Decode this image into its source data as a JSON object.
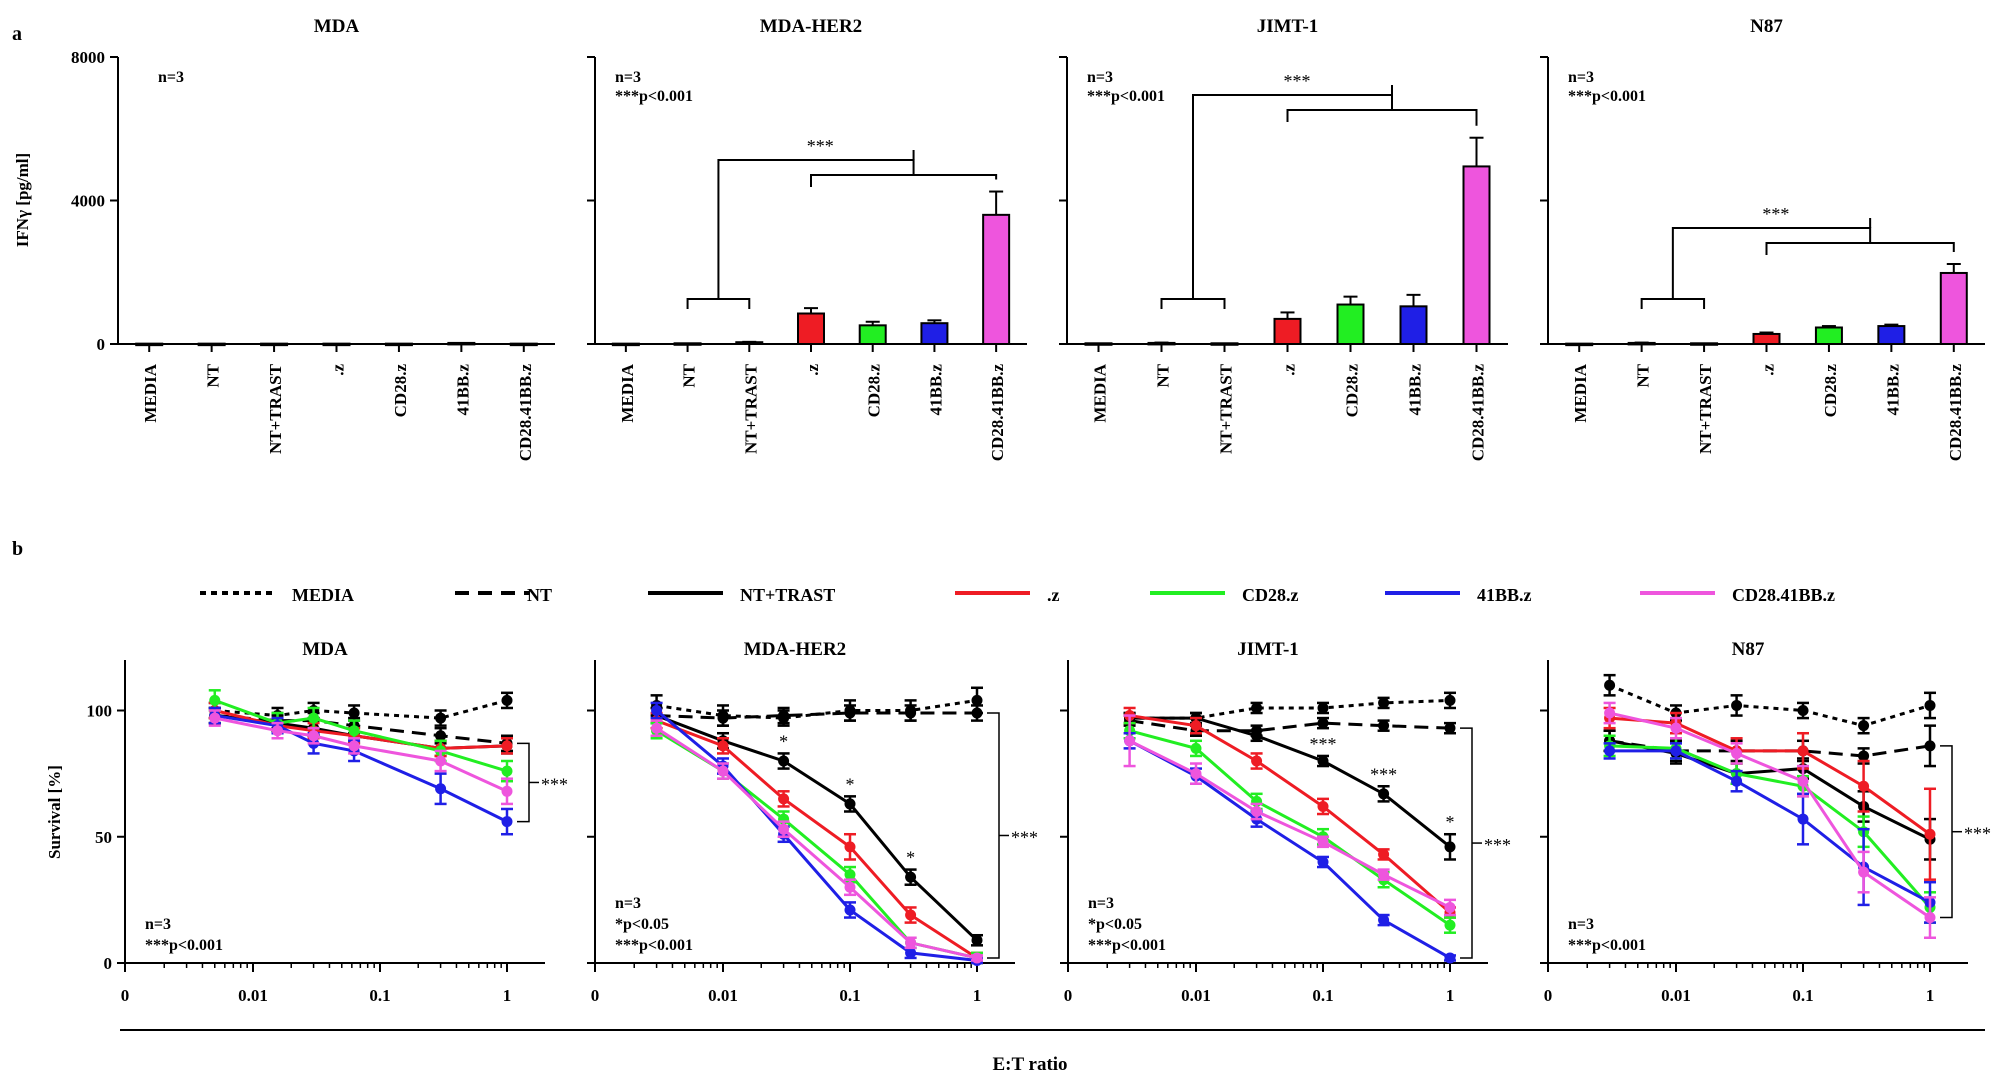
{
  "panel_labels": {
    "a": "a",
    "b": "b"
  },
  "colors": {
    "MEDIA": "#000000",
    "NT": "#000000",
    "NT+TRAST": "#000000",
    ".z": "#ee1c24",
    "CD28.z": "#22ee22",
    "41BB.z": "#1f1fe6",
    "CD28.41BB.z": "#ee55dd"
  },
  "chart_data": [
    {
      "type": "bar",
      "title": "MDA",
      "ylabel": "IFNγ [pg/ml]",
      "yticks": [
        "0",
        "4000",
        "8000"
      ],
      "ylim": [
        0,
        8000
      ],
      "categories": [
        "MEDIA",
        "NT",
        "NT+TRAST",
        ".z",
        "CD28.z",
        "41BB.z",
        "CD28.41BB.z"
      ],
      "values": [
        10,
        10,
        10,
        10,
        10,
        30,
        10
      ],
      "errors": [
        0,
        0,
        0,
        0,
        0,
        0,
        0
      ],
      "annotations": [
        "n=3"
      ],
      "significance": null
    },
    {
      "type": "bar",
      "title": "MDA-HER2",
      "categories": [
        "MEDIA",
        "NT",
        "NT+TRAST",
        ".z",
        "CD28.z",
        "41BB.z",
        "CD28.41BB.z"
      ],
      "values": [
        10,
        20,
        50,
        850,
        520,
        580,
        3600
      ],
      "errors": [
        0,
        0,
        10,
        150,
        100,
        80,
        650
      ],
      "annotations": [
        "n=3",
        "***p<0.001"
      ],
      "significance": "***"
    },
    {
      "type": "bar",
      "title": "JIMT-1",
      "categories": [
        "MEDIA",
        "NT",
        "NT+TRAST",
        ".z",
        "CD28.z",
        "41BB.z",
        "CD28.41BB.z"
      ],
      "values": [
        20,
        30,
        20,
        700,
        1100,
        1050,
        4950
      ],
      "errors": [
        0,
        10,
        0,
        180,
        220,
        320,
        800
      ],
      "annotations": [
        "n=3",
        "***p<0.001"
      ],
      "significance": "***"
    },
    {
      "type": "bar",
      "title": "N87",
      "categories": [
        "MEDIA",
        "NT",
        "NT+TRAST",
        ".z",
        "CD28.z",
        "41BB.z",
        "CD28.41BB.z"
      ],
      "values": [
        10,
        30,
        20,
        280,
        460,
        500,
        1980
      ],
      "errors": [
        0,
        10,
        0,
        40,
        40,
        40,
        250
      ],
      "annotations": [
        "n=3",
        "***p<0.001"
      ],
      "significance": "***"
    },
    {
      "type": "line",
      "title": "MDA",
      "ylabel": "Survival [%]",
      "yticks": [
        "0",
        "50",
        "100"
      ],
      "ylim": [
        0,
        120
      ],
      "xticks": [
        "0",
        "0.01",
        "0.1",
        "1"
      ],
      "x": [
        0.005,
        0.0156,
        0.03,
        0.0625,
        0.3,
        1
      ],
      "series": [
        {
          "name": "MEDIA",
          "values": [
            100,
            98,
            100,
            99,
            97,
            104
          ],
          "errors": [
            3,
            3,
            3,
            3,
            3,
            3
          ]
        },
        {
          "name": "NT",
          "values": [
            98,
            96,
            96,
            94,
            90,
            87
          ],
          "errors": [
            3,
            3,
            3,
            3,
            3,
            3
          ]
        },
        {
          "name": "NT+TRAST",
          "values": [
            98,
            95,
            93,
            90,
            85,
            86
          ],
          "errors": [
            3,
            3,
            3,
            3,
            3,
            3
          ]
        },
        {
          "name": ".z",
          "values": [
            100,
            94,
            92,
            90,
            85,
            86
          ],
          "errors": [
            3,
            3,
            3,
            3,
            3,
            3
          ]
        },
        {
          "name": "CD28.z",
          "values": [
            104,
            95,
            97,
            92,
            84,
            76
          ],
          "errors": [
            4,
            4,
            4,
            4,
            4,
            4
          ]
        },
        {
          "name": "41BB.z",
          "values": [
            98,
            94,
            87,
            84,
            69,
            56
          ],
          "errors": [
            3,
            3,
            4,
            4,
            6,
            5
          ]
        },
        {
          "name": "CD28.41BB.z",
          "values": [
            97,
            92,
            90,
            86,
            80,
            68
          ],
          "errors": [
            3,
            3,
            3,
            3,
            4,
            5
          ]
        }
      ],
      "annotations": [
        "n=3",
        "***p<0.001"
      ],
      "significance": "***"
    },
    {
      "type": "line",
      "title": "MDA-HER2",
      "xticks": [
        "0",
        "0.01",
        "0.1",
        "1"
      ],
      "x": [
        0.003,
        0.01,
        0.03,
        0.1,
        0.3,
        1
      ],
      "series": [
        {
          "name": "MEDIA",
          "values": [
            102,
            98,
            97,
            100,
            100,
            104
          ],
          "errors": [
            4,
            4,
            3,
            4,
            4,
            5
          ]
        },
        {
          "name": "NT",
          "values": [
            98,
            97,
            98,
            99,
            99,
            99
          ],
          "errors": [
            3,
            3,
            3,
            3,
            3,
            3
          ]
        },
        {
          "name": "NT+TRAST",
          "values": [
            98,
            88,
            80,
            63,
            34,
            9
          ],
          "errors": [
            3,
            3,
            3,
            3,
            3,
            2
          ]
        },
        {
          "name": ".z",
          "values": [
            96,
            86,
            65,
            46,
            19,
            2
          ],
          "errors": [
            3,
            3,
            3,
            5,
            3,
            2
          ]
        },
        {
          "name": "CD28.z",
          "values": [
            92,
            76,
            57,
            35,
            8,
            2
          ],
          "errors": [
            3,
            3,
            3,
            3,
            2,
            2
          ]
        },
        {
          "name": "41BB.z",
          "values": [
            100,
            78,
            51,
            21,
            4,
            1
          ],
          "errors": [
            3,
            3,
            3,
            3,
            2,
            1
          ]
        },
        {
          "name": "CD28.41BB.z",
          "values": [
            93,
            76,
            53,
            30,
            8,
            2
          ],
          "errors": [
            3,
            3,
            3,
            3,
            2,
            1
          ]
        }
      ],
      "star_markers": [
        "*",
        "*",
        "*"
      ],
      "annotations": [
        "n=3",
        "*p<0.05",
        "***p<0.001"
      ],
      "significance": "***"
    },
    {
      "type": "line",
      "title": "JIMT-1",
      "xticks": [
        "0",
        "0.01",
        "0.1",
        "1"
      ],
      "x": [
        0.003,
        0.01,
        0.03,
        0.1,
        0.3,
        1
      ],
      "series": [
        {
          "name": "MEDIA",
          "values": [
            97,
            97,
            101,
            101,
            103,
            104
          ],
          "errors": [
            2,
            2,
            2,
            2,
            2,
            3
          ]
        },
        {
          "name": "NT",
          "values": [
            96,
            92,
            92,
            95,
            94,
            93
          ],
          "errors": [
            2,
            2,
            2,
            2,
            2,
            2
          ]
        },
        {
          "name": "NT+TRAST",
          "values": [
            97,
            97,
            90,
            80,
            67,
            46
          ],
          "errors": [
            2,
            2,
            2,
            2,
            3,
            5
          ]
        },
        {
          "name": ".z",
          "values": [
            98,
            94,
            80,
            62,
            43,
            20
          ],
          "errors": [
            3,
            3,
            3,
            3,
            2,
            2
          ]
        },
        {
          "name": "CD28.z",
          "values": [
            92,
            85,
            64,
            50,
            33,
            15
          ],
          "errors": [
            3,
            3,
            3,
            3,
            3,
            3
          ]
        },
        {
          "name": "41BB.z",
          "values": [
            88,
            74,
            57,
            40,
            17,
            2
          ],
          "errors": [
            3,
            3,
            3,
            2,
            2,
            1
          ]
        },
        {
          "name": "CD28.41BB.z",
          "values": [
            88,
            75,
            60,
            48,
            35,
            22
          ],
          "errors": [
            10,
            4,
            3,
            2,
            2,
            3
          ]
        }
      ],
      "star_markers": [
        "***",
        "***",
        "*"
      ],
      "annotations": [
        "n=3",
        "*p<0.05",
        "***p<0.001"
      ],
      "significance": "***"
    },
    {
      "type": "line",
      "title": "N87",
      "xticks": [
        "0",
        "0.01",
        "0.1",
        "1"
      ],
      "x": [
        0.003,
        0.01,
        0.03,
        0.1,
        0.3,
        1
      ],
      "series": [
        {
          "name": "MEDIA",
          "values": [
            110,
            99,
            102,
            100,
            94,
            102
          ],
          "errors": [
            4,
            3,
            4,
            3,
            3,
            5
          ]
        },
        {
          "name": "NT",
          "values": [
            88,
            84,
            84,
            84,
            82,
            86
          ],
          "errors": [
            4,
            4,
            4,
            4,
            3,
            8
          ]
        },
        {
          "name": "NT+TRAST",
          "values": [
            88,
            83,
            75,
            77,
            62,
            49
          ],
          "errors": [
            4,
            4,
            4,
            4,
            6,
            8
          ]
        },
        {
          "name": ".z",
          "values": [
            97,
            95,
            84,
            84,
            70,
            51
          ],
          "errors": [
            4,
            4,
            5,
            7,
            10,
            18
          ]
        },
        {
          "name": "CD28.z",
          "values": [
            86,
            85,
            75,
            70,
            52,
            22
          ],
          "errors": [
            4,
            4,
            4,
            4,
            6,
            6
          ]
        },
        {
          "name": "41BB.z",
          "values": [
            84,
            84,
            72,
            57,
            38,
            24
          ],
          "errors": [
            3,
            3,
            4,
            10,
            15,
            8
          ]
        },
        {
          "name": "CD28.41BB.z",
          "values": [
            99,
            93,
            83,
            72,
            36,
            18
          ],
          "errors": [
            4,
            4,
            4,
            6,
            8,
            8
          ]
        }
      ],
      "annotations": [
        "n=3",
        "***p<0.001"
      ],
      "significance": "***"
    }
  ],
  "legend": {
    "entries": [
      {
        "name": "MEDIA",
        "label": "MEDIA",
        "dash": "dotted"
      },
      {
        "name": "NT",
        "label": "NT",
        "dash": "dashed"
      },
      {
        "name": "NT+TRAST",
        "label": "NT+TRAST",
        "dash": "solid"
      },
      {
        "name": ".z",
        "label": ".z",
        "dash": "solid"
      },
      {
        "name": "CD28.z",
        "label": "CD28.z",
        "dash": "solid"
      },
      {
        "name": "41BB.z",
        "label": "41BB.z",
        "dash": "solid"
      },
      {
        "name": "CD28.41BB.z",
        "label": "CD28.41BB.z",
        "dash": "solid"
      }
    ]
  },
  "shared_xlabel": "E:T ratio"
}
